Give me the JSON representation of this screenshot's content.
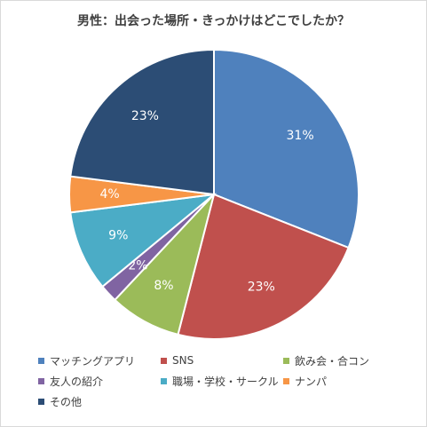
{
  "chart_data": {
    "type": "pie",
    "title": "男性：出会った場所・きっかけはどこでしたか？",
    "slices": [
      {
        "name": "マッチングアプリ",
        "value": 31,
        "label": "31%",
        "color": "#4f81bd"
      },
      {
        "name": "SNS",
        "value": 23,
        "label": "23%",
        "color": "#c0504d"
      },
      {
        "name": "飲み会・合コン",
        "value": 8,
        "label": "8%",
        "color": "#9bbb59"
      },
      {
        "name": "友人の紹介",
        "value": 2,
        "label": "2%",
        "color": "#8064a2"
      },
      {
        "name": "職場・学校・サークル",
        "value": 9,
        "label": "9%",
        "color": "#4bacc6"
      },
      {
        "name": "ナンパ",
        "value": 4,
        "label": "4%",
        "color": "#f79646"
      },
      {
        "name": "その他",
        "value": 23,
        "label": "23%",
        "color": "#2c4d75"
      }
    ],
    "data_labels": "inside",
    "legend_position": "bottom"
  }
}
